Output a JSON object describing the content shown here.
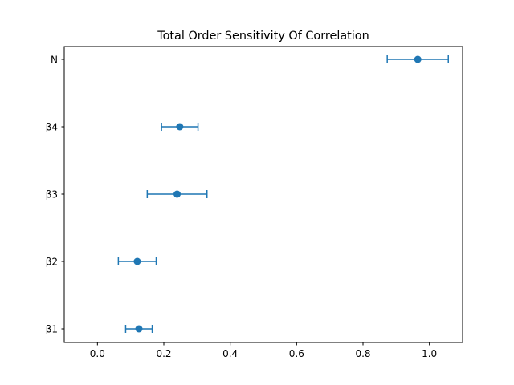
{
  "chart_data": {
    "type": "scatter",
    "title": "Total Order Sensitivity Of Correlation",
    "xlabel": "",
    "ylabel": "",
    "xlim": [
      -0.1,
      1.1
    ],
    "xticks": [
      "0.0",
      "0.2",
      "0.4",
      "0.6",
      "0.8",
      "1.0"
    ],
    "categories": [
      "β1",
      "β2",
      "β3",
      "β4",
      "N"
    ],
    "values": [
      0.125,
      0.12,
      0.24,
      0.248,
      0.965
    ],
    "errors": [
      0.04,
      0.057,
      0.09,
      0.055,
      0.092
    ],
    "grid": false,
    "color": "#1f77b4"
  }
}
